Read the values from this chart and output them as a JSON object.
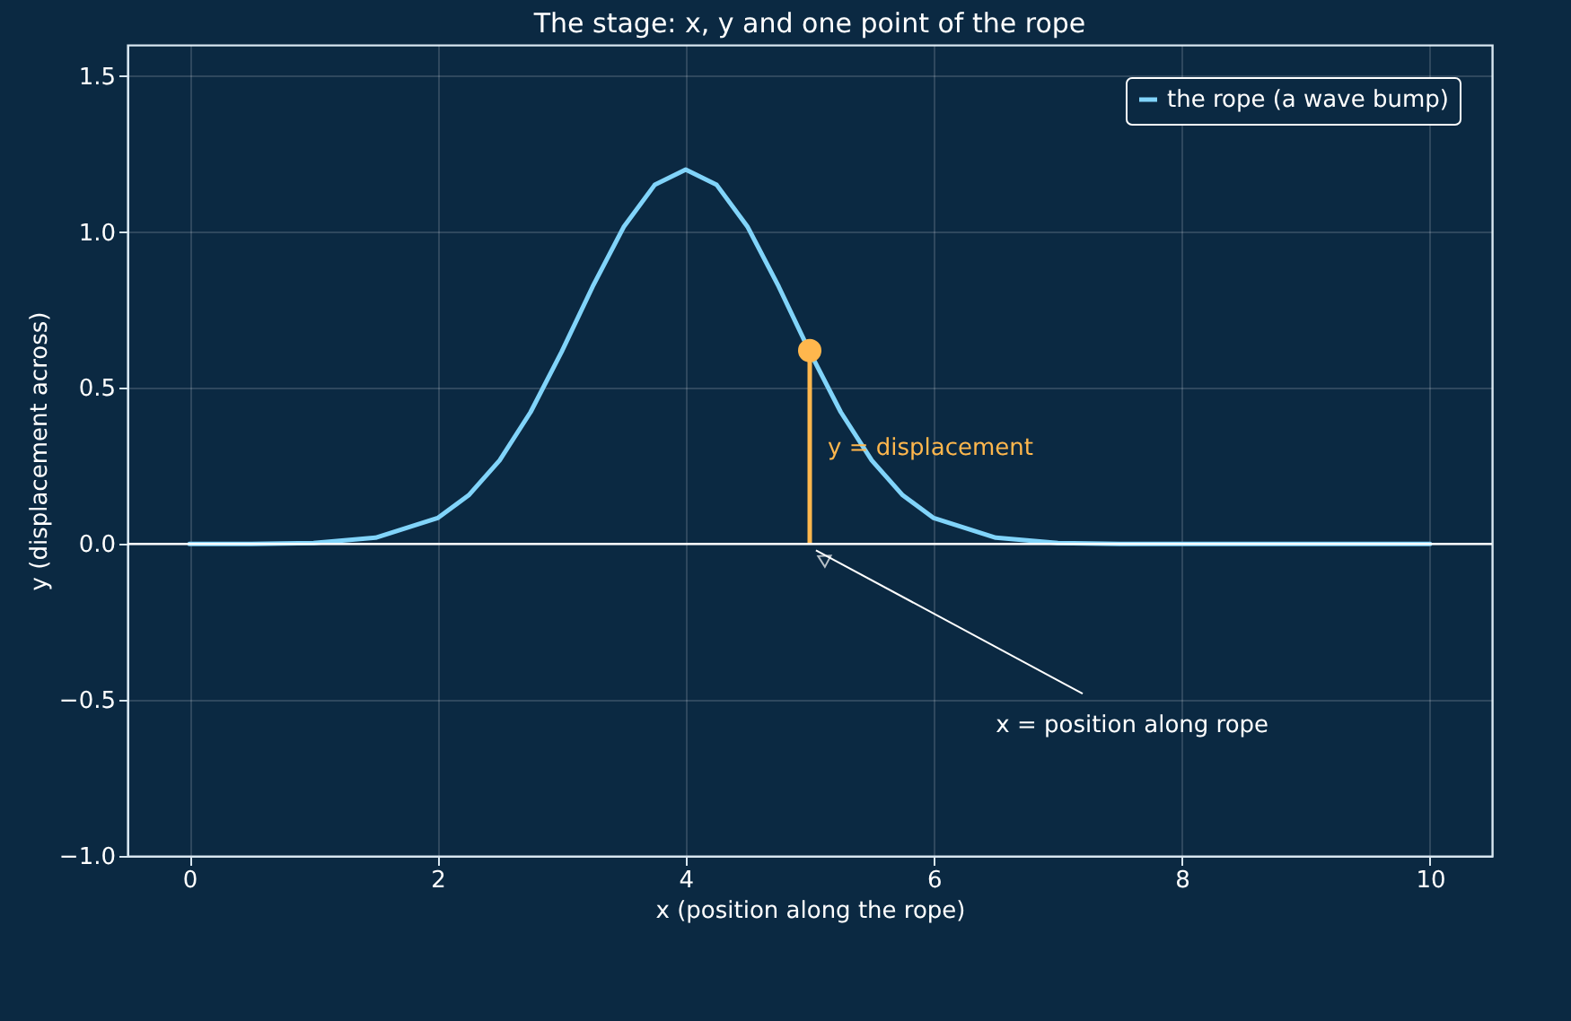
{
  "chart_data": {
    "type": "line",
    "title": "The stage: x, y and one point of the rope",
    "xlabel": "x  (position along the rope)",
    "ylabel": "y  (displacement across)",
    "x": [
      0,
      0.5,
      1,
      1.5,
      2,
      2.25,
      2.5,
      2.75,
      3,
      3.25,
      3.5,
      3.75,
      4,
      4.25,
      4.5,
      4.75,
      5,
      5.25,
      5.5,
      5.75,
      6,
      6.5,
      7,
      7.5,
      8,
      9,
      10
    ],
    "series": [
      {
        "name": "the rope (a wave bump)",
        "color": "#81d4fa",
        "values": [
          0,
          0,
          0.003,
          0.02,
          0.083,
          0.156,
          0.268,
          0.423,
          0.616,
          0.825,
          1.016,
          1.151,
          1.2,
          1.151,
          1.016,
          0.825,
          0.616,
          0.423,
          0.268,
          0.156,
          0.083,
          0.02,
          0.003,
          0,
          0,
          0,
          0
        ]
      },
      {
        "type": "scatter",
        "color": "#ffb74d",
        "x": [
          5
        ],
        "values": [
          0.62
        ],
        "marker": "circle"
      }
    ],
    "xlim": [
      -0.5,
      10.5
    ],
    "xticks": [
      {
        "value": 0,
        "label": "0"
      },
      {
        "value": 2,
        "label": "2"
      },
      {
        "value": 4,
        "label": "4"
      },
      {
        "value": 6,
        "label": "6"
      },
      {
        "value": 8,
        "label": "8"
      },
      {
        "value": 10,
        "label": "10"
      }
    ],
    "ylim": [
      -1,
      1.6
    ],
    "yticks": [
      {
        "value": -1,
        "label": "−1.0"
      },
      {
        "value": -0.5,
        "label": "−0.5"
      },
      {
        "value": 0,
        "label": "0.0"
      },
      {
        "value": 0.5,
        "label": "0.5"
      },
      {
        "value": 1,
        "label": "1.0"
      },
      {
        "value": 1.5,
        "label": "1.5"
      }
    ],
    "ref_lines": [
      {
        "axis": "y",
        "value": 0,
        "color": "#ffffff"
      }
    ],
    "annotations": [
      "y = displacement",
      {
        "text": "x = position along rope",
        "x": 5,
        "y": 0
      }
    ],
    "grid": true,
    "legend": "top right"
  }
}
